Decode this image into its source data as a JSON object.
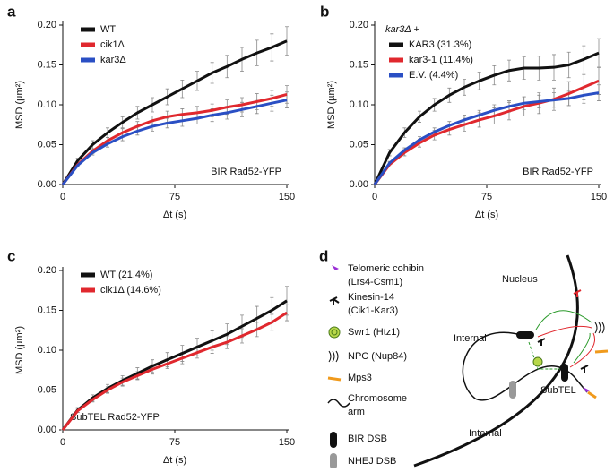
{
  "chart_data": [
    {
      "type": "line",
      "label": "a",
      "ylabel": "MSD (µm²)",
      "xlabel": "Δt (s)",
      "annotation": "BIR Rad52-YFP",
      "x": [
        0,
        10,
        20,
        30,
        40,
        50,
        60,
        70,
        80,
        90,
        100,
        110,
        120,
        130,
        140,
        150
      ],
      "xlim": [
        0,
        150
      ],
      "xticks": [
        0,
        75,
        150
      ],
      "ylim": [
        0,
        0.2
      ],
      "yticks": [
        {
          "value": 0,
          "label": "0.00"
        },
        {
          "value": 0.05,
          "label": "0.05"
        },
        {
          "value": 0.1,
          "label": "0.10"
        },
        {
          "value": 0.15,
          "label": "0.15"
        },
        {
          "value": 0.2,
          "label": "0.20"
        }
      ],
      "series": [
        {
          "name": "WT",
          "color": "#111111",
          "values": [
            0,
            0.03,
            0.05,
            0.065,
            0.078,
            0.09,
            0.1,
            0.11,
            0.12,
            0.13,
            0.14,
            0.148,
            0.157,
            0.165,
            0.172,
            0.18
          ],
          "errors": [
            0,
            0.003,
            0.005,
            0.006,
            0.007,
            0.008,
            0.009,
            0.01,
            0.011,
            0.012,
            0.013,
            0.014,
            0.015,
            0.016,
            0.017,
            0.018
          ]
        },
        {
          "name": "cik1Δ",
          "color": "#e0282e",
          "values": [
            0,
            0.025,
            0.042,
            0.055,
            0.065,
            0.073,
            0.08,
            0.085,
            0.088,
            0.09,
            0.093,
            0.097,
            0.1,
            0.104,
            0.108,
            0.113
          ],
          "errors": [
            0,
            0.002,
            0.003,
            0.004,
            0.005,
            0.006,
            0.006,
            0.007,
            0.007,
            0.008,
            0.008,
            0.009,
            0.009,
            0.01,
            0.01,
            0.011
          ]
        },
        {
          "name": "kar3Δ",
          "color": "#2a4fc4",
          "values": [
            0,
            0.024,
            0.04,
            0.051,
            0.06,
            0.067,
            0.073,
            0.077,
            0.08,
            0.083,
            0.087,
            0.09,
            0.094,
            0.098,
            0.102,
            0.106
          ],
          "errors": [
            0,
            0.002,
            0.003,
            0.004,
            0.005,
            0.005,
            0.006,
            0.006,
            0.007,
            0.007,
            0.008,
            0.008,
            0.009,
            0.009,
            0.01,
            0.01
          ]
        }
      ]
    },
    {
      "type": "line",
      "label": "b",
      "legend_title": "kar3Δ +",
      "ylabel": "MSD (µm²)",
      "xlabel": "Δt (s)",
      "annotation": "BIR Rad52-YFP",
      "x": [
        0,
        10,
        20,
        30,
        40,
        50,
        60,
        70,
        80,
        90,
        100,
        110,
        120,
        130,
        140,
        150
      ],
      "xlim": [
        0,
        150
      ],
      "xticks": [
        0,
        75,
        150
      ],
      "ylim": [
        0,
        0.2
      ],
      "yticks": [
        {
          "value": 0,
          "label": "0.00"
        },
        {
          "value": 0.05,
          "label": "0.05"
        },
        {
          "value": 0.1,
          "label": "0.10"
        },
        {
          "value": 0.15,
          "label": "0.15"
        },
        {
          "value": 0.2,
          "label": "0.20"
        }
      ],
      "series": [
        {
          "name": "KAR3 (31.3%)",
          "color": "#111111",
          "values": [
            0,
            0.04,
            0.065,
            0.085,
            0.1,
            0.112,
            0.122,
            0.13,
            0.137,
            0.143,
            0.146,
            0.146,
            0.147,
            0.15,
            0.157,
            0.165
          ],
          "errors": [
            0,
            0.004,
            0.006,
            0.007,
            0.008,
            0.009,
            0.01,
            0.011,
            0.012,
            0.013,
            0.014,
            0.015,
            0.016,
            0.016,
            0.017,
            0.018
          ]
        },
        {
          "name": "kar3-1 (11.4%)",
          "color": "#e0282e",
          "values": [
            0,
            0.025,
            0.04,
            0.052,
            0.062,
            0.069,
            0.075,
            0.081,
            0.086,
            0.092,
            0.098,
            0.102,
            0.107,
            0.114,
            0.122,
            0.13
          ],
          "errors": [
            0,
            0.003,
            0.004,
            0.005,
            0.006,
            0.007,
            0.008,
            0.009,
            0.01,
            0.011,
            0.012,
            0.013,
            0.014,
            0.015,
            0.016,
            0.017
          ]
        },
        {
          "name": "E.V. (4.4%)",
          "color": "#2a4fc4",
          "values": [
            0,
            0.027,
            0.043,
            0.056,
            0.066,
            0.074,
            0.081,
            0.087,
            0.093,
            0.098,
            0.102,
            0.104,
            0.106,
            0.108,
            0.112,
            0.115
          ],
          "errors": [
            0,
            0.002,
            0.003,
            0.004,
            0.005,
            0.005,
            0.006,
            0.006,
            0.007,
            0.007,
            0.008,
            0.008,
            0.009,
            0.009,
            0.01,
            0.01
          ]
        }
      ]
    },
    {
      "type": "line",
      "label": "c",
      "ylabel": "MSD (µm²)",
      "xlabel": "Δt (s)",
      "annotation": "SubTEL Rad52-YFP",
      "x": [
        0,
        10,
        20,
        30,
        40,
        50,
        60,
        70,
        80,
        90,
        100,
        110,
        120,
        130,
        140,
        150
      ],
      "xlim": [
        0,
        150
      ],
      "xticks": [
        0,
        75,
        150
      ],
      "ylim": [
        0,
        0.2
      ],
      "yticks": [
        {
          "value": 0,
          "label": "0.00"
        },
        {
          "value": 0.05,
          "label": "0.05"
        },
        {
          "value": 0.1,
          "label": "0.10"
        },
        {
          "value": 0.15,
          "label": "0.15"
        },
        {
          "value": 0.2,
          "label": "0.20"
        }
      ],
      "series": [
        {
          "name": "WT (21.4%)",
          "color": "#111111",
          "values": [
            0,
            0.025,
            0.04,
            0.052,
            0.062,
            0.071,
            0.08,
            0.088,
            0.096,
            0.104,
            0.112,
            0.12,
            0.13,
            0.14,
            0.15,
            0.162
          ],
          "errors": [
            0,
            0.003,
            0.004,
            0.005,
            0.006,
            0.007,
            0.008,
            0.009,
            0.01,
            0.011,
            0.012,
            0.013,
            0.014,
            0.015,
            0.016,
            0.018
          ]
        },
        {
          "name": "cik1Δ (14.6%)",
          "color": "#e0282e",
          "values": [
            0,
            0.024,
            0.038,
            0.05,
            0.06,
            0.068,
            0.076,
            0.083,
            0.09,
            0.097,
            0.104,
            0.11,
            0.118,
            0.126,
            0.135,
            0.147
          ],
          "errors": [
            0,
            0.002,
            0.003,
            0.004,
            0.005,
            0.005,
            0.006,
            0.006,
            0.007,
            0.007,
            0.008,
            0.008,
            0.009,
            0.009,
            0.01,
            0.01
          ]
        }
      ]
    }
  ],
  "diagram": {
    "label": "d",
    "legend": [
      {
        "text": "Telomeric cohibin",
        "subtext": "(Lrs4-Csm1)"
      },
      {
        "text": "Kinesin-14",
        "subtext": "(Cik1-Kar3)"
      },
      {
        "text": "Swr1 (Htz1)"
      },
      {
        "text": "NPC (Nup84)"
      },
      {
        "text": "Mps3"
      },
      {
        "text": "Chromosome",
        "subtext": "arm"
      },
      {
        "text": "BIR DSB"
      },
      {
        "text": "NHEJ DSB"
      }
    ],
    "labels": [
      "Nucleus",
      "Internal",
      "SubTEL",
      "Internal"
    ]
  }
}
